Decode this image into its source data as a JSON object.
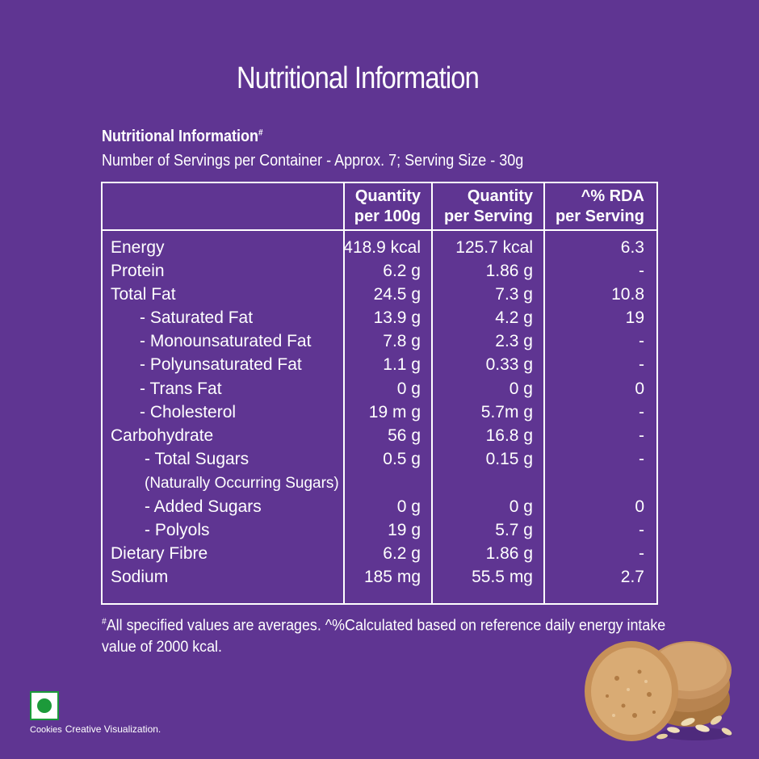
{
  "title": "Nutritional Information",
  "info": {
    "heading": "Nutritional Information",
    "heading_mark": "#",
    "serving_line": "Number of Servings per Container - Approx. 7; Serving Size - 30g"
  },
  "table": {
    "headers": [
      {
        "line1": "Quantity",
        "line2": "per 100g"
      },
      {
        "line1": "Quantity",
        "line2": "per Serving"
      },
      {
        "line1": "^% RDA",
        "line2": "per Serving"
      }
    ],
    "rows": [
      {
        "name": "Energy",
        "per100g": "418.9 kcal",
        "perServing": "125.7 kcal",
        "rda": "6.3"
      },
      {
        "name": "Protein",
        "per100g": "6.2 g",
        "perServing": "1.86 g",
        "rda": "-"
      },
      {
        "name": "Total Fat",
        "per100g": "24.5 g",
        "perServing": "7.3 g",
        "rda": "10.8"
      },
      {
        "name": "- Saturated Fat",
        "per100g": "13.9 g",
        "perServing": "4.2 g",
        "rda": "19"
      },
      {
        "name": "- Monounsaturated Fat",
        "per100g": "7.8 g",
        "perServing": "2.3 g",
        "rda": "-"
      },
      {
        "name": "- Polyunsaturated Fat",
        "per100g": "1.1 g",
        "perServing": "0.33 g",
        "rda": "-"
      },
      {
        "name": "- Trans Fat",
        "per100g": "0 g",
        "perServing": "0 g",
        "rda": "0"
      },
      {
        "name": "- Cholesterol",
        "per100g": "19 m g",
        "perServing": "5.7m g",
        "rda": "-"
      },
      {
        "name": "Carbohydrate",
        "per100g": "56 g",
        "perServing": "16.8 g",
        "rda": "-"
      },
      {
        "name": "- Total Sugars",
        "per100g": "0.5 g",
        "perServing": "0.15 g",
        "rda": "-"
      },
      {
        "name": "(Naturally Occurring Sugars)",
        "per100g": "",
        "perServing": "",
        "rda": ""
      },
      {
        "name": "- Added Sugars",
        "per100g": "0 g",
        "perServing": "0 g",
        "rda": "0"
      },
      {
        "name": "- Polyols",
        "per100g": "19 g",
        "perServing": "5.7 g",
        "rda": "-"
      },
      {
        "name": "Dietary Fibre",
        "per100g": "6.2 g",
        "perServing": "1.86 g",
        "rda": "-"
      },
      {
        "name": "Sodium",
        "per100g": "185 mg",
        "perServing": "55.5 mg",
        "rda": "2.7"
      }
    ]
  },
  "footnote": {
    "mark": "#",
    "text": "All specified values are averages. ^%Calculated based on reference daily energy intake value of 2000 kcal."
  },
  "bottom": {
    "caption_first": "Cookies",
    "caption_second": "Creative Visualization."
  },
  "colors": {
    "background": "#5f3592",
    "text": "#ffffff",
    "veg_mark": "#1c9a3a"
  },
  "icons": {
    "veg_mark": "vegetarian-mark-icon",
    "cookie_art": "cookies-with-oats-illustration"
  }
}
